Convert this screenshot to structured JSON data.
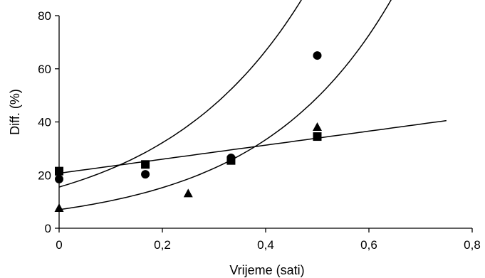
{
  "chart_data": {
    "type": "scatter",
    "title": "",
    "xlabel": "Vrijeme (sati)",
    "ylabel": "Diff. (%)",
    "xlim": [
      0,
      0.8
    ],
    "ylim": [
      0,
      80
    ],
    "x_ticks": [
      0,
      0.2,
      0.4,
      0.6,
      0.8
    ],
    "x_tick_labels": [
      "0",
      "0,2",
      "0,4",
      "0,6",
      "0,8"
    ],
    "y_ticks": [
      0,
      20,
      40,
      60,
      80
    ],
    "y_tick_labels": [
      "0",
      "20",
      "40",
      "60",
      "80"
    ],
    "grid": false,
    "legend": "none",
    "series": [
      {
        "marker": "circle",
        "points": [
          [
            0,
            18.5
          ],
          [
            0.167,
            20.3
          ],
          [
            0.333,
            26.5
          ],
          [
            0.5,
            65
          ]
        ],
        "fit": {
          "type": "exponential",
          "a": 15.5,
          "b": 3.65,
          "x_range": [
            0,
            0.688
          ]
        }
      },
      {
        "marker": "triangle",
        "points": [
          [
            0,
            7.5
          ],
          [
            0.25,
            13
          ],
          [
            0.5,
            38
          ]
        ],
        "fit": {
          "type": "exponential",
          "a": 7.0,
          "b": 3.9,
          "x_range": [
            0,
            0.75
          ]
        }
      },
      {
        "marker": "square",
        "points": [
          [
            0,
            21.5
          ],
          [
            0.167,
            24
          ],
          [
            0.333,
            25.5
          ],
          [
            0.5,
            34.5
          ]
        ],
        "fit": {
          "type": "linear",
          "intercept": 20.7,
          "slope": 26.4,
          "x_range": [
            0,
            0.75
          ]
        }
      }
    ]
  }
}
